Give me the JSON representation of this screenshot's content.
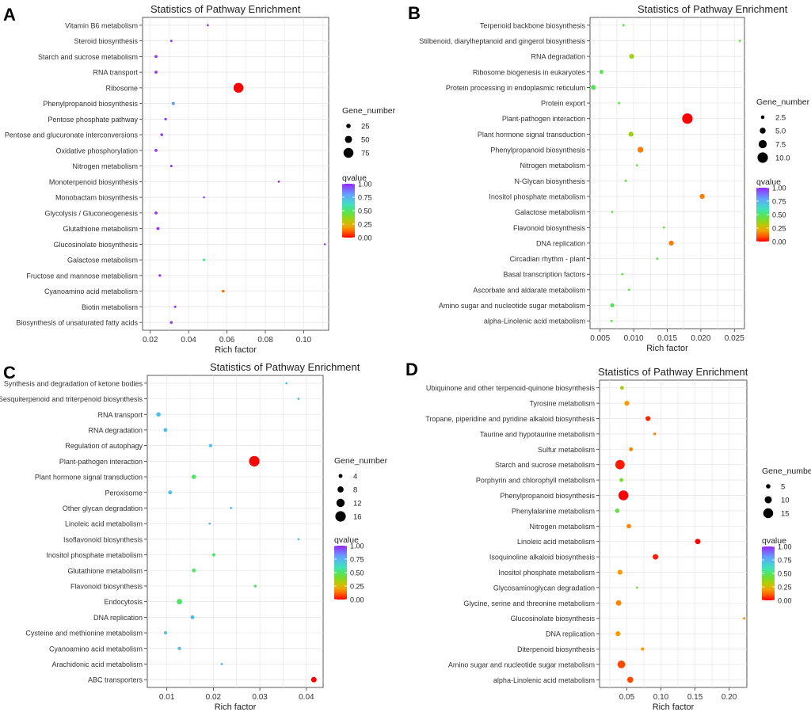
{
  "legend_titles": {
    "size": "Gene_number",
    "color": "qvalue"
  },
  "colorbar_ticks": [
    "1.00",
    "0.75",
    "0.50",
    "0.25",
    "0.00"
  ],
  "chart_data": [
    {
      "panel": "A",
      "type": "scatter",
      "title": "Statistics of Pathway Enrichment",
      "xlabel": "Rich factor",
      "xlim": [
        0.016,
        0.113
      ],
      "xticks": [
        0.02,
        0.04,
        0.06,
        0.08,
        0.1
      ],
      "xtick_labels": [
        "0.02",
        "0.04",
        "0.06",
        "0.08",
        "0.10"
      ],
      "size_range": [
        5,
        80
      ],
      "size_legend": [
        25,
        50,
        75
      ],
      "size_legend_labels": [
        "25",
        "50",
        "75"
      ],
      "points": [
        {
          "pathway": "Vitamin B6 metabolism",
          "rich_factor": 0.05,
          "gene_number": 4,
          "qvalue": 0.98
        },
        {
          "pathway": "Steroid biosynthesis",
          "rich_factor": 0.031,
          "gene_number": 6,
          "qvalue": 0.98
        },
        {
          "pathway": "Starch and sucrose metabolism",
          "rich_factor": 0.023,
          "gene_number": 12,
          "qvalue": 0.98
        },
        {
          "pathway": "RNA transport",
          "rich_factor": 0.023,
          "gene_number": 12,
          "qvalue": 0.98
        },
        {
          "pathway": "Ribosome",
          "rich_factor": 0.066,
          "gene_number": 75,
          "qvalue": 0.0
        },
        {
          "pathway": "Phenylpropanoid biosynthesis",
          "rich_factor": 0.032,
          "gene_number": 14,
          "qvalue": 0.82
        },
        {
          "pathway": "Pentose phosphate pathway",
          "rich_factor": 0.028,
          "gene_number": 8,
          "qvalue": 0.98
        },
        {
          "pathway": "Pentose and glucuronate interconversions",
          "rich_factor": 0.026,
          "gene_number": 10,
          "qvalue": 0.98
        },
        {
          "pathway": "Oxidative phosphorylation",
          "rich_factor": 0.023,
          "gene_number": 12,
          "qvalue": 0.98
        },
        {
          "pathway": "Nitrogen metabolism",
          "rich_factor": 0.031,
          "gene_number": 7,
          "qvalue": 0.98
        },
        {
          "pathway": "Monoterpenoid biosynthesis",
          "rich_factor": 0.087,
          "gene_number": 5,
          "qvalue": 0.98
        },
        {
          "pathway": "Monobactam biosynthesis",
          "rich_factor": 0.048,
          "gene_number": 3,
          "qvalue": 0.98
        },
        {
          "pathway": "Glycolysis / Gluconeogenesis",
          "rich_factor": 0.023,
          "gene_number": 12,
          "qvalue": 0.98
        },
        {
          "pathway": "Glutathione metabolism",
          "rich_factor": 0.024,
          "gene_number": 12,
          "qvalue": 0.98
        },
        {
          "pathway": "Glucosinolate biosynthesis",
          "rich_factor": 0.111,
          "gene_number": 3,
          "qvalue": 0.98
        },
        {
          "pathway": "Galactose metabolism",
          "rich_factor": 0.048,
          "gene_number": 8,
          "qvalue": 0.55
        },
        {
          "pathway": "Fructose and mannose metabolism",
          "rich_factor": 0.025,
          "gene_number": 8,
          "qvalue": 0.98
        },
        {
          "pathway": "Cyanoamino acid metabolism",
          "rich_factor": 0.058,
          "gene_number": 10,
          "qvalue": 0.12
        },
        {
          "pathway": "Biotin metabolism",
          "rich_factor": 0.033,
          "gene_number": 6,
          "qvalue": 0.98
        },
        {
          "pathway": "Biosynthesis of unsaturated fatty acids",
          "rich_factor": 0.031,
          "gene_number": 10,
          "qvalue": 0.98
        }
      ]
    },
    {
      "panel": "B",
      "type": "scatter",
      "title": "Statistics of Pathway Enrichment",
      "xlabel": "Rich factor",
      "xlim": [
        0.0035,
        0.0265
      ],
      "xticks": [
        0.005,
        0.01,
        0.015,
        0.02,
        0.025
      ],
      "xtick_labels": [
        "0.005",
        "0.010",
        "0.015",
        "0.020",
        "0.025"
      ],
      "size_range": [
        1,
        10
      ],
      "size_legend": [
        2.5,
        5.0,
        7.5,
        10.0
      ],
      "size_legend_labels": [
        "2.5",
        "5.0",
        "7.5",
        "10.0"
      ],
      "points": [
        {
          "pathway": "Terpenoid backbone biosynthesis",
          "rich_factor": 0.0085,
          "gene_number": 1,
          "qvalue": 0.45
        },
        {
          "pathway": "Stilbenoid, diarylheptanoid and gingerol biosynthesis",
          "rich_factor": 0.0258,
          "gene_number": 1,
          "qvalue": 0.45
        },
        {
          "pathway": "RNA degradation",
          "rich_factor": 0.0097,
          "gene_number": 4,
          "qvalue": 0.35
        },
        {
          "pathway": "Ribosome biogenesis in eukaryotes",
          "rich_factor": 0.0052,
          "gene_number": 3,
          "qvalue": 0.48
        },
        {
          "pathway": "Protein processing in endoplasmic reticulum",
          "rich_factor": 0.004,
          "gene_number": 4,
          "qvalue": 0.48
        },
        {
          "pathway": "Protein export",
          "rich_factor": 0.0078,
          "gene_number": 1,
          "qvalue": 0.45
        },
        {
          "pathway": "Plant-pathogen interaction",
          "rich_factor": 0.018,
          "gene_number": 10,
          "qvalue": 0.0
        },
        {
          "pathway": "Plant hormone signal transduction",
          "rich_factor": 0.0096,
          "gene_number": 4,
          "qvalue": 0.35
        },
        {
          "pathway": "Phenylpropanoid biosynthesis",
          "rich_factor": 0.011,
          "gene_number": 5,
          "qvalue": 0.14
        },
        {
          "pathway": "Nitrogen metabolism",
          "rich_factor": 0.0105,
          "gene_number": 1,
          "qvalue": 0.45
        },
        {
          "pathway": "N-Glycan biosynthesis",
          "rich_factor": 0.0088,
          "gene_number": 1,
          "qvalue": 0.45
        },
        {
          "pathway": "Inositol phosphate metabolism",
          "rich_factor": 0.0202,
          "gene_number": 4,
          "qvalue": 0.14
        },
        {
          "pathway": "Galactose metabolism",
          "rich_factor": 0.0068,
          "gene_number": 1,
          "qvalue": 0.45
        },
        {
          "pathway": "Flavonoid biosynthesis",
          "rich_factor": 0.0145,
          "gene_number": 1,
          "qvalue": 0.45
        },
        {
          "pathway": "DNA replication",
          "rich_factor": 0.0156,
          "gene_number": 4,
          "qvalue": 0.14
        },
        {
          "pathway": "Circadian rhythm - plant",
          "rich_factor": 0.0135,
          "gene_number": 1,
          "qvalue": 0.45
        },
        {
          "pathway": "Basal transcription factors",
          "rich_factor": 0.0083,
          "gene_number": 1,
          "qvalue": 0.45
        },
        {
          "pathway": "Ascorbate and aldarate metabolism",
          "rich_factor": 0.0093,
          "gene_number": 1,
          "qvalue": 0.45
        },
        {
          "pathway": "Amino sugar and nucleotide sugar metabolism",
          "rich_factor": 0.0068,
          "gene_number": 3,
          "qvalue": 0.48
        },
        {
          "pathway": "alpha-Linolenic acid metabolism",
          "rich_factor": 0.0067,
          "gene_number": 1,
          "qvalue": 0.45
        }
      ]
    },
    {
      "panel": "C",
      "type": "scatter",
      "title": "Statistics of Pathway Enrichment",
      "xlabel": "Rich factor",
      "xlim": [
        0.0058,
        0.0436
      ],
      "xticks": [
        0.01,
        0.02,
        0.03,
        0.04
      ],
      "xtick_labels": [
        "0.01",
        "0.02",
        "0.03",
        "0.04"
      ],
      "size_range": [
        1,
        16
      ],
      "size_legend": [
        4,
        8,
        12,
        16
      ],
      "size_legend_labels": [
        "4",
        "8",
        "12",
        "16"
      ],
      "points": [
        {
          "pathway": "Synthesis and degradation of ketone bodies",
          "rich_factor": 0.0357,
          "gene_number": 1,
          "qvalue": 0.72
        },
        {
          "pathway": "Sesquiterpenoid and triterpenoid biosynthesis",
          "rich_factor": 0.0383,
          "gene_number": 1,
          "qvalue": 0.72
        },
        {
          "pathway": "RNA transport",
          "rich_factor": 0.0082,
          "gene_number": 5,
          "qvalue": 0.72
        },
        {
          "pathway": "RNA degradation",
          "rich_factor": 0.0097,
          "gene_number": 4,
          "qvalue": 0.72
        },
        {
          "pathway": "Regulation of autophagy",
          "rich_factor": 0.0194,
          "gene_number": 3,
          "qvalue": 0.72
        },
        {
          "pathway": "Plant-pathogen interaction",
          "rich_factor": 0.0288,
          "gene_number": 16,
          "qvalue": 0.0
        },
        {
          "pathway": "Plant hormone signal transduction",
          "rich_factor": 0.0158,
          "gene_number": 5,
          "qvalue": 0.5
        },
        {
          "pathway": "Peroxisome",
          "rich_factor": 0.0107,
          "gene_number": 4,
          "qvalue": 0.72
        },
        {
          "pathway": "Other glycan degradation",
          "rich_factor": 0.0238,
          "gene_number": 1,
          "qvalue": 0.72
        },
        {
          "pathway": "Linoleic acid metabolism",
          "rich_factor": 0.0192,
          "gene_number": 1,
          "qvalue": 0.72
        },
        {
          "pathway": "Isoflavonoid biosynthesis",
          "rich_factor": 0.0383,
          "gene_number": 1,
          "qvalue": 0.72
        },
        {
          "pathway": "Inositol phosphate metabolism",
          "rich_factor": 0.0201,
          "gene_number": 3,
          "qvalue": 0.5
        },
        {
          "pathway": "Glutathione metabolism",
          "rich_factor": 0.0158,
          "gene_number": 4,
          "qvalue": 0.5
        },
        {
          "pathway": "Flavonoid biosynthesis",
          "rich_factor": 0.029,
          "gene_number": 2,
          "qvalue": 0.5
        },
        {
          "pathway": "Endocytosis",
          "rich_factor": 0.0127,
          "gene_number": 7,
          "qvalue": 0.5
        },
        {
          "pathway": "DNA replication",
          "rich_factor": 0.0155,
          "gene_number": 4,
          "qvalue": 0.72
        },
        {
          "pathway": "Cysteine and methionine metabolism",
          "rich_factor": 0.0097,
          "gene_number": 3,
          "qvalue": 0.72
        },
        {
          "pathway": "Cyanoamino acid metabolism",
          "rich_factor": 0.0127,
          "gene_number": 3,
          "qvalue": 0.72
        },
        {
          "pathway": "Arachidonic acid metabolism",
          "rich_factor": 0.0218,
          "gene_number": 1,
          "qvalue": 0.72
        },
        {
          "pathway": "ABC transporters",
          "rich_factor": 0.0416,
          "gene_number": 7,
          "qvalue": 0.0
        }
      ]
    },
    {
      "panel": "D",
      "type": "scatter",
      "title": "Statistics of Pathway Enrichment",
      "xlabel": "Rich factor",
      "xlim": [
        0.01,
        0.226
      ],
      "xticks": [
        0.05,
        0.1,
        0.15,
        0.2
      ],
      "xtick_labels": [
        "0.05",
        "0.10",
        "0.15",
        "0.20"
      ],
      "size_range": [
        1,
        16
      ],
      "size_legend": [
        5,
        10,
        15
      ],
      "size_legend_labels": [
        "5",
        "10",
        "15"
      ],
      "points": [
        {
          "pathway": "Ubiquinone and other terpenoid-quinone biosynthesis",
          "rich_factor": 0.043,
          "gene_number": 4,
          "qvalue": 0.33
        },
        {
          "pathway": "Tyrosine metabolism",
          "rich_factor": 0.05,
          "gene_number": 6,
          "qvalue": 0.18
        },
        {
          "pathway": "Tropane, piperidine and pyridine alkaloid biosynthesis",
          "rich_factor": 0.081,
          "gene_number": 6,
          "qvalue": 0.04
        },
        {
          "pathway": "Taurine and hypotaurine metabolism",
          "rich_factor": 0.091,
          "gene_number": 2,
          "qvalue": 0.15
        },
        {
          "pathway": "Sulfur metabolism",
          "rich_factor": 0.056,
          "gene_number": 4,
          "qvalue": 0.15
        },
        {
          "pathway": "Starch and sucrose metabolism",
          "rich_factor": 0.04,
          "gene_number": 14,
          "qvalue": 0.03
        },
        {
          "pathway": "Porphyrin and chlorophyll metabolism",
          "rich_factor": 0.042,
          "gene_number": 4,
          "qvalue": 0.42
        },
        {
          "pathway": "Phenylpropanoid biosynthesis",
          "rich_factor": 0.045,
          "gene_number": 15,
          "qvalue": 0.0
        },
        {
          "pathway": "Phenylalanine metabolism",
          "rich_factor": 0.036,
          "gene_number": 5,
          "qvalue": 0.45
        },
        {
          "pathway": "Nitrogen metabolism",
          "rich_factor": 0.053,
          "gene_number": 5,
          "qvalue": 0.15
        },
        {
          "pathway": "Linoleic acid metabolism",
          "rich_factor": 0.154,
          "gene_number": 7,
          "qvalue": 0.0
        },
        {
          "pathway": "Isoquinoline alkaloid biosynthesis",
          "rich_factor": 0.092,
          "gene_number": 7,
          "qvalue": 0.03
        },
        {
          "pathway": "Inositol phosphate metabolism",
          "rich_factor": 0.04,
          "gene_number": 6,
          "qvalue": 0.18
        },
        {
          "pathway": "Glycosaminoglycan degradation",
          "rich_factor": 0.065,
          "gene_number": 1,
          "qvalue": 0.42
        },
        {
          "pathway": "Glycine, serine and threonine metabolism",
          "rich_factor": 0.038,
          "gene_number": 7,
          "qvalue": 0.15
        },
        {
          "pathway": "Glucosinolate biosynthesis",
          "rich_factor": 0.222,
          "gene_number": 1,
          "qvalue": 0.15
        },
        {
          "pathway": "DNA replication",
          "rich_factor": 0.037,
          "gene_number": 6,
          "qvalue": 0.18
        },
        {
          "pathway": "Diterpenoid biosynthesis",
          "rich_factor": 0.073,
          "gene_number": 3,
          "qvalue": 0.18
        },
        {
          "pathway": "Amino sugar and nucleotide sugar metabolism",
          "rich_factor": 0.042,
          "gene_number": 11,
          "qvalue": 0.08
        },
        {
          "pathway": "alpha-Linolenic acid metabolism",
          "rich_factor": 0.055,
          "gene_number": 8,
          "qvalue": 0.08
        }
      ]
    }
  ]
}
